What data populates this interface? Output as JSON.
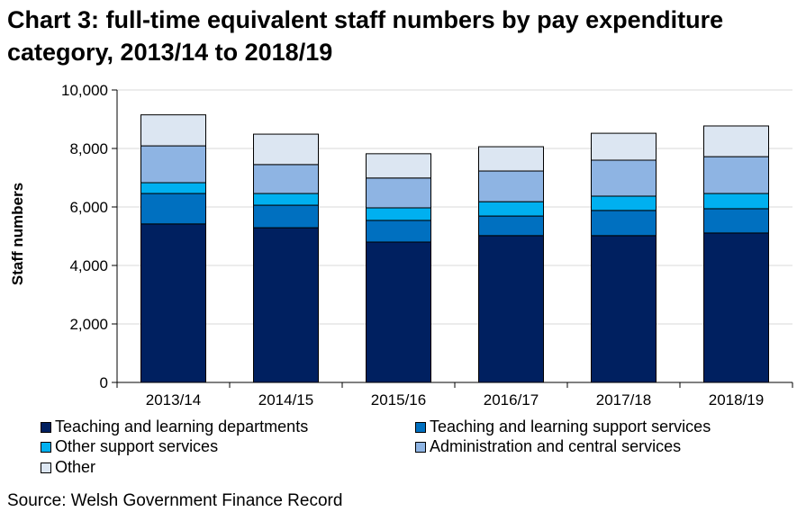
{
  "chart_data": {
    "type": "bar",
    "stacked": true,
    "title": "Chart 3: full-time equivalent staff numbers by pay expenditure category, 2013/14 to 2018/19",
    "xlabel": "",
    "ylabel": "Staff numbers",
    "ylim": [
      0,
      10000
    ],
    "yticks": [
      "0",
      "2,000",
      "4,000",
      "6,000",
      "8,000",
      "10,000"
    ],
    "ytick_values": [
      0,
      2000,
      4000,
      6000,
      8000,
      10000
    ],
    "grid": true,
    "legend_position": "bottom",
    "categories": [
      "2013/14",
      "2014/15",
      "2015/16",
      "2016/17",
      "2017/18",
      "2018/19"
    ],
    "series": [
      {
        "name": "Teaching and learning departments",
        "color": "#002060",
        "values": [
          5420,
          5290,
          4800,
          5020,
          5020,
          5110
        ]
      },
      {
        "name": "Teaching and learning support services",
        "color": "#0070C0",
        "values": [
          1040,
          770,
          740,
          670,
          860,
          830
        ]
      },
      {
        "name": "Other support services",
        "color": "#00B0F0",
        "values": [
          370,
          400,
          430,
          490,
          490,
          520
        ]
      },
      {
        "name": "Administration and central services",
        "color": "#8EB4E3",
        "values": [
          1260,
          990,
          1020,
          1050,
          1230,
          1260
        ]
      },
      {
        "name": "Other",
        "color": "#DCE6F2",
        "values": [
          1060,
          1040,
          830,
          830,
          920,
          1050
        ]
      }
    ]
  },
  "source": "Source: Welsh Government Finance Record"
}
